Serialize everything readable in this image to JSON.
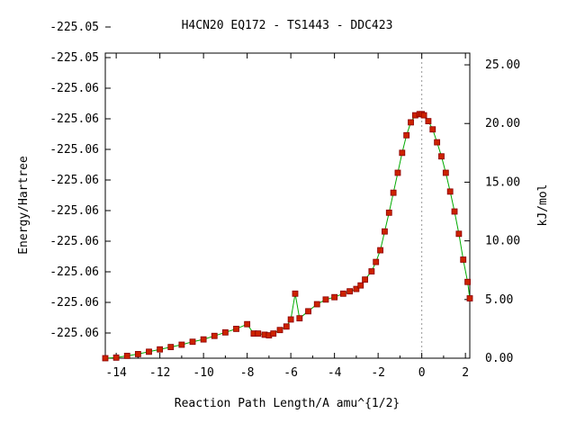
{
  "chart_data": {
    "type": "line",
    "title": "H4CN20   EQ172 - TS1443 - DDC423",
    "xlabel": "Reaction Path Length/A amu^{1/2}",
    "ylabel": "Energy/Hartree",
    "y2label": "kJ/mol",
    "xlim": [
      -14.5,
      2.2
    ],
    "y2lim": [
      0.0,
      26.0
    ],
    "x_ticks": [
      -14,
      -12,
      -10,
      -8,
      -6,
      -4,
      -2,
      0,
      2
    ],
    "x_tick_labels": [
      "-14",
      "-12",
      "-10",
      "-8",
      "-6",
      "-4",
      "-2",
      "0",
      "2"
    ],
    "y_tick_labels": [
      "-225.06",
      "-225.06",
      "-225.06",
      "-225.06",
      "-225.06",
      "-225.06",
      "-225.06",
      "-225.06",
      "-225.06",
      "-225.05",
      "-225.05"
    ],
    "y2_ticks": [
      0.0,
      5.0,
      10.0,
      15.0,
      20.0,
      25.0
    ],
    "y2_tick_labels": [
      "0.00",
      "5.00",
      "10.00",
      "15.00",
      "20.00",
      "25.00"
    ],
    "ts_marker_x": 0.0,
    "grid": false,
    "legend": "none",
    "colors": {
      "line": "#00aa00",
      "marker": "#cc2200",
      "marker_edge": "#8b0000",
      "ts_line": "#999999"
    },
    "series": [
      {
        "x": [
          -14.5,
          -14.0,
          -13.5,
          -13.0,
          -12.5,
          -12.0,
          -11.5,
          -11.0,
          -10.5,
          -10.0,
          -9.5,
          -9.0,
          -8.5,
          -8.0,
          -7.7,
          -7.5,
          -7.2,
          -7.0,
          -6.8,
          -6.5,
          -6.2,
          -6.0,
          -5.8,
          -5.6,
          -5.2,
          -4.8,
          -4.4,
          -4.0,
          -3.6,
          -3.3,
          -3.0,
          -2.8,
          -2.6,
          -2.3,
          -2.1,
          -1.9,
          -1.7,
          -1.5,
          -1.3,
          -1.1,
          -0.9,
          -0.7,
          -0.5,
          -0.3,
          -0.1,
          0.0,
          0.1,
          0.3,
          0.5,
          0.7,
          0.9,
          1.1,
          1.3,
          1.5,
          1.7,
          1.9,
          2.1,
          2.2
        ],
        "y": [
          0.0,
          0.05,
          0.2,
          0.35,
          0.55,
          0.75,
          0.95,
          1.15,
          1.4,
          1.6,
          1.9,
          2.2,
          2.5,
          2.9,
          2.1,
          2.1,
          2.0,
          1.95,
          2.1,
          2.4,
          2.7,
          3.3,
          5.5,
          3.4,
          4.0,
          4.6,
          5.0,
          5.2,
          5.5,
          5.7,
          5.9,
          6.2,
          6.7,
          7.4,
          8.2,
          9.2,
          10.8,
          12.4,
          14.1,
          15.8,
          17.5,
          19.0,
          20.1,
          20.7,
          20.8,
          20.8,
          20.7,
          20.2,
          19.5,
          18.4,
          17.2,
          15.8,
          14.2,
          12.5,
          10.6,
          8.4,
          6.5,
          5.1
        ]
      }
    ]
  }
}
